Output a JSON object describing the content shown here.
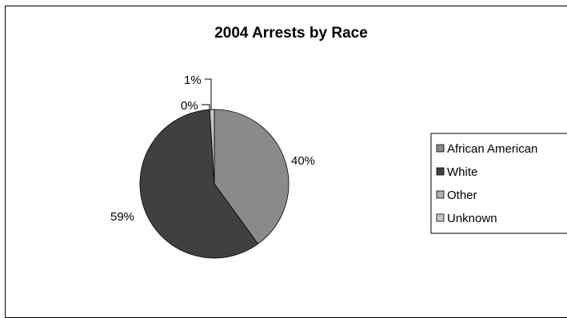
{
  "chart_data": {
    "type": "pie",
    "title": "2004 Arrests by Race",
    "categories": [
      "African American",
      "White",
      "Other",
      "Unknown"
    ],
    "values": [
      40,
      59,
      0,
      1
    ],
    "data_labels": [
      "40%",
      "59%",
      "0%",
      "1%"
    ],
    "colors": [
      "#8a8a8a",
      "#404040",
      "#b0b0b0",
      "#c4c4c4"
    ],
    "legend_position": "right",
    "grid": false
  }
}
